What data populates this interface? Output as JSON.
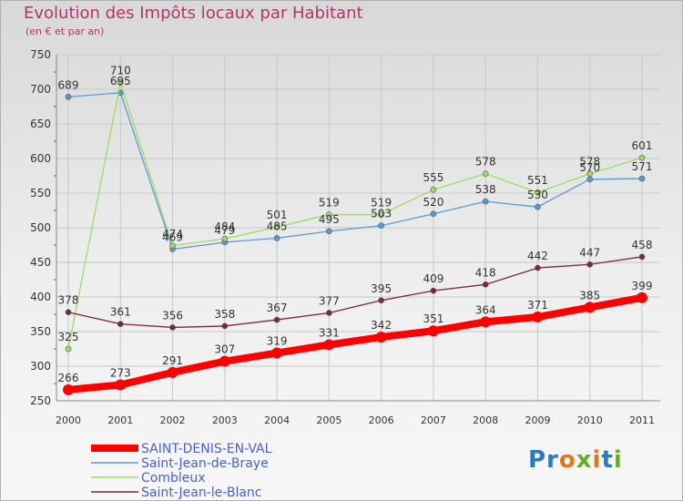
{
  "title": "Evolution des Impôts locaux par Habitant",
  "subtitle": "(en € et par an)",
  "logo": {
    "text": "Proxiti"
  },
  "colors": {
    "title": "#b5336b",
    "axis_text": "#333333",
    "grid": "#c8c8c8",
    "legend_text": "#4a5fd0"
  },
  "chart_data": {
    "type": "line",
    "x": [
      "2000",
      "2001",
      "2002",
      "2003",
      "2004",
      "2005",
      "2006",
      "2007",
      "2008",
      "2009",
      "2010",
      "2011"
    ],
    "ylim": [
      250,
      750
    ],
    "yticks": [
      250,
      300,
      350,
      400,
      450,
      500,
      550,
      600,
      650,
      700,
      750
    ],
    "grid": true,
    "legend_position": "bottom-left",
    "series": [
      {
        "name": "SAINT-DENIS-EN-VAL",
        "color": "#ff0000",
        "emphasis": "thick",
        "values": [
          266,
          273,
          291,
          307,
          319,
          331,
          342,
          351,
          364,
          371,
          385,
          399
        ]
      },
      {
        "name": "Saint-Jean-de-Braye",
        "color": "#5a9ad5",
        "values": [
          689,
          695,
          469,
          479,
          485,
          495,
          503,
          520,
          538,
          530,
          570,
          571
        ]
      },
      {
        "name": "Combleux",
        "color": "#99dd66",
        "values": [
          325,
          710,
          474,
          484,
          501,
          519,
          519,
          555,
          578,
          551,
          578,
          601
        ]
      },
      {
        "name": "Saint-Jean-le-Blanc",
        "color": "#7a2a35",
        "values": [
          378,
          361,
          356,
          358,
          367,
          377,
          395,
          409,
          418,
          442,
          447,
          458
        ]
      }
    ]
  }
}
